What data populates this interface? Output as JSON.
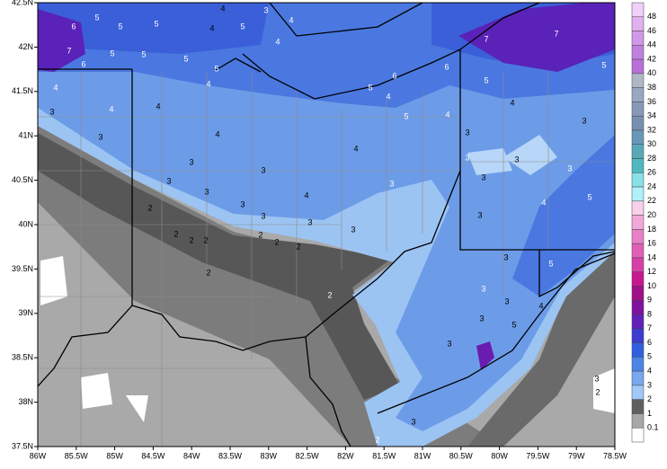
{
  "map": {
    "lon_labels": [
      "86W",
      "85.5W",
      "85W",
      "84.5W",
      "84W",
      "83.5W",
      "83W",
      "82.5W",
      "82W",
      "81.5W",
      "81W",
      "80.5W",
      "80W",
      "79.5W",
      "79W",
      "78.5W"
    ],
    "lat_labels": [
      "42.5N",
      "42N",
      "41.5N",
      "41N",
      "40.5N",
      "40N",
      "39.5N",
      "39N",
      "38.5N",
      "38N",
      "37.5N"
    ],
    "colorbar_labels": [
      "48",
      "46",
      "44",
      "42",
      "40",
      "38",
      "36",
      "34",
      "32",
      "30",
      "28",
      "26",
      "24",
      "22",
      "20",
      "18",
      "16",
      "14",
      "12",
      "10",
      "9",
      "8",
      "7",
      "6",
      "5",
      "4",
      "3",
      "2",
      "1",
      "0.1"
    ],
    "contour_labels": [
      "5",
      "6",
      "5",
      "5",
      "7",
      "6",
      "5",
      "5",
      "5",
      "4",
      "4",
      "3",
      "4",
      "5",
      "4",
      "5",
      "4",
      "4",
      "3",
      "4",
      "4",
      "4",
      "3",
      "3",
      "3",
      "3",
      "3",
      "3",
      "3",
      "2",
      "2",
      "2",
      "2",
      "2",
      "4",
      "3",
      "3",
      "6",
      "5",
      "4",
      "5",
      "4",
      "3",
      "4",
      "6",
      "7",
      "5",
      "7",
      "5",
      "3",
      "3",
      "3",
      "4",
      "3",
      "3",
      "3",
      "5",
      "4",
      "3",
      "5",
      "3",
      "3",
      "3",
      "5",
      "3",
      "3",
      "4",
      "2",
      "3",
      "2",
      "3",
      "2",
      "2",
      "2",
      "2"
    ]
  }
}
